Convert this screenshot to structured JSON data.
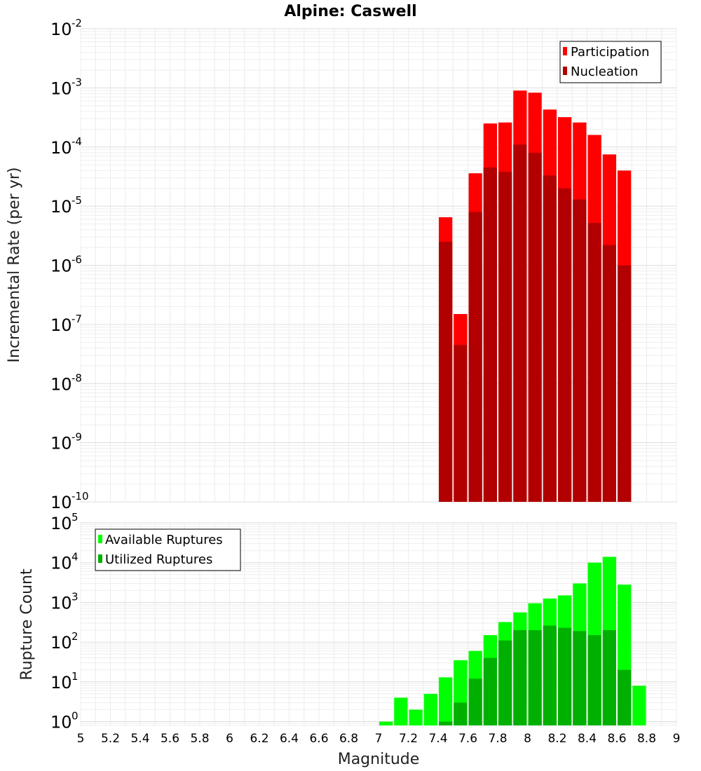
{
  "chart_data": [
    {
      "type": "bar",
      "title": "Alpine: Caswell",
      "xlabel": "Magnitude",
      "ylabel": "Incremental Rate (per yr)",
      "yscale": "log",
      "ylim": [
        1e-10,
        0.01
      ],
      "xlim": [
        5,
        9
      ],
      "grid": true,
      "legend_position": "top-right",
      "x": [
        7.45,
        7.55,
        7.65,
        7.75,
        7.85,
        7.95,
        8.05,
        8.15,
        8.25,
        8.35,
        8.45,
        8.55,
        8.65
      ],
      "series": [
        {
          "name": "Participation",
          "color": "#ff0000",
          "values": [
            6.5e-06,
            1.5e-07,
            3.6e-05,
            0.00025,
            0.00026,
            0.0009,
            0.00083,
            0.00043,
            0.00032,
            0.00026,
            0.00016,
            7.5e-05,
            4e-05
          ]
        },
        {
          "name": "Nucleation",
          "color": "#b20000",
          "values": [
            2.5e-06,
            4.5e-08,
            8e-06,
            4.5e-05,
            3.8e-05,
            0.00011,
            8e-05,
            3.3e-05,
            2e-05,
            1.3e-05,
            5.2e-06,
            2.2e-06,
            1e-06
          ]
        }
      ]
    },
    {
      "type": "bar",
      "xlabel": "Magnitude",
      "ylabel": "Rupture Count",
      "yscale": "log",
      "ylim": [
        0.8,
        100000.0
      ],
      "xlim": [
        5,
        9
      ],
      "grid": true,
      "legend_position": "top-left",
      "x_ticks": [
        "5",
        "5.2",
        "5.4",
        "5.6",
        "5.8",
        "6",
        "6.2",
        "6.4",
        "6.6",
        "6.8",
        "7",
        "7.2",
        "7.4",
        "7.6",
        "7.8",
        "8",
        "8.2",
        "8.4",
        "8.6",
        "8.8",
        "9"
      ],
      "x": [
        7.05,
        7.15,
        7.25,
        7.35,
        7.45,
        7.55,
        7.65,
        7.75,
        7.85,
        7.95,
        8.05,
        8.15,
        8.25,
        8.35,
        8.45,
        8.55,
        8.65,
        8.75
      ],
      "series": [
        {
          "name": "Available Ruptures",
          "color": "#00ff00",
          "values": [
            1,
            4,
            2,
            5,
            13,
            35,
            60,
            150,
            320,
            560,
            950,
            1250,
            1500,
            3000,
            10000,
            14000,
            2800,
            8
          ]
        },
        {
          "name": "Utilized Ruptures",
          "color": "#00b000",
          "values": [
            0,
            0,
            0,
            0,
            1,
            3,
            12,
            40,
            110,
            200,
            200,
            260,
            230,
            190,
            150,
            200,
            20,
            0
          ]
        }
      ]
    }
  ]
}
